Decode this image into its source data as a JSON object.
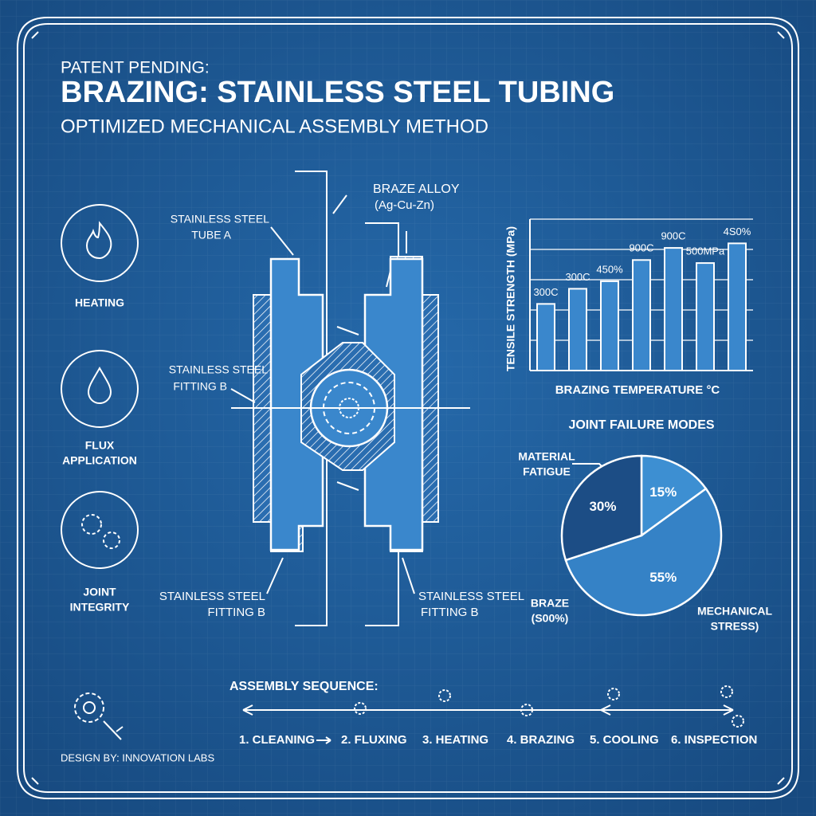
{
  "header": {
    "kicker": "PATENT PENDING:",
    "title": "BRAZING: STAINLESS STEEL TUBING",
    "subtitle": "OPTIMIZED MECHANICAL ASSEMBLY METHOD"
  },
  "icons": [
    {
      "label": [
        "HEATING"
      ]
    },
    {
      "label": [
        "FLUX",
        "APPLICATION"
      ]
    },
    {
      "label": [
        "JOINT",
        "INTEGRITY"
      ]
    }
  ],
  "drawing": {
    "callouts": [
      {
        "lines": [
          "BRAZE ALLOY",
          "(Ag-Cu-Zn)"
        ]
      },
      {
        "lines": [
          "STAINLESS STEEL",
          "TUBE A"
        ]
      },
      {
        "lines": [
          "STAINLESS STEEL",
          "FITTING B"
        ]
      },
      {
        "lines": [
          "STAINLESS STEEL",
          "FITTING B"
        ]
      },
      {
        "lines": [
          "STAINLESS STEEL",
          "FITTING B"
        ]
      }
    ]
  },
  "bar_chart": {
    "type": "bar",
    "y_label": "TENSILE STRENGTH (MPa)",
    "x_label": "BRAZING TEMPERATURE °C",
    "values": [
      44,
      54,
      59,
      73,
      81,
      71,
      84
    ],
    "notes": [
      "300C",
      "300C",
      "450%",
      "900C",
      "900C",
      "500MPa",
      "4S0%"
    ],
    "ylim": [
      0,
      100
    ],
    "grid_lines": [
      0,
      20,
      40,
      60,
      80,
      100
    ],
    "color": "#3a87cc"
  },
  "pie_chart": {
    "type": "pie",
    "title": "JOINT FAILURE MODES",
    "values": [
      15,
      55,
      30
    ],
    "value_labels": [
      "15%",
      "55%",
      "30%"
    ],
    "colors": [
      "#3d8fd2",
      "#3582c6",
      "#1c4d85"
    ],
    "callouts": [
      [
        "MATERIAL",
        "FATIGUE"
      ],
      [
        "BRAZE",
        "(S00%)"
      ],
      [
        "MECHANICAL",
        "STRESS)"
      ]
    ]
  },
  "sequence": {
    "title": "ASSEMBLY SEQUENCE:",
    "steps": [
      "1. CLEANING",
      "2. FLUXING",
      "3. HEATING",
      "4. BRAZING",
      "5. COOLING",
      "6. INSPECTION"
    ]
  },
  "footer": {
    "credit": "DESIGN BY: INNOVATION LABS"
  }
}
